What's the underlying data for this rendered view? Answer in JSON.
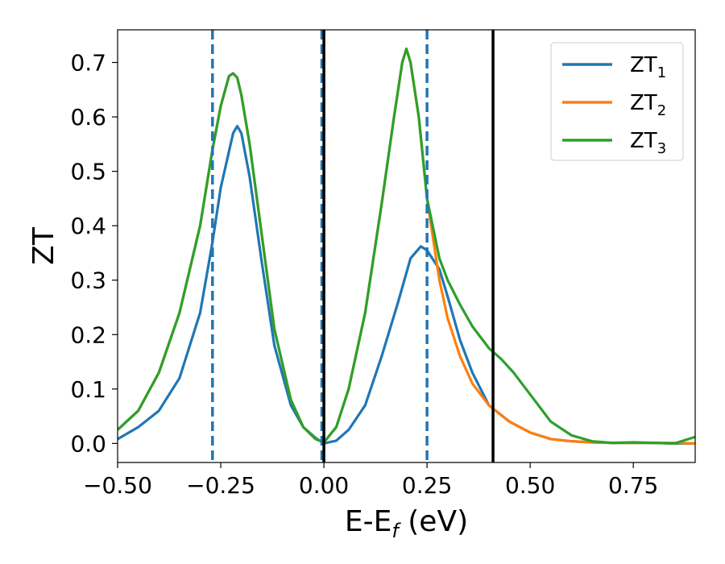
{
  "chart_data": {
    "type": "line",
    "xlabel": "E-E",
    "xlabel_sub": "f",
    "xlabel_unit": " (eV)",
    "ylabel": "ZT",
    "xlim": [
      -0.5,
      0.9
    ],
    "ylim": [
      -0.035,
      0.76
    ],
    "x_ticks": [
      -0.5,
      -0.25,
      0.0,
      0.25,
      0.5,
      0.75
    ],
    "x_tick_labels": [
      "−0.50",
      "−0.25",
      "0.00",
      "0.25",
      "0.50",
      "0.75"
    ],
    "y_ticks": [
      0.0,
      0.1,
      0.2,
      0.3,
      0.4,
      0.5,
      0.6,
      0.7
    ],
    "y_tick_labels": [
      "0.0",
      "0.1",
      "0.2",
      "0.3",
      "0.4",
      "0.5",
      "0.6",
      "0.7"
    ],
    "grid": false,
    "legend_position": "top-right",
    "series": [
      {
        "name": "ZT",
        "sub": "1",
        "color": "#1f77b4",
        "points": [
          [
            -0.5,
            0.008
          ],
          [
            -0.45,
            0.03
          ],
          [
            -0.4,
            0.06
          ],
          [
            -0.35,
            0.12
          ],
          [
            -0.3,
            0.24
          ],
          [
            -0.27,
            0.37
          ],
          [
            -0.25,
            0.47
          ],
          [
            -0.22,
            0.57
          ],
          [
            -0.21,
            0.583
          ],
          [
            -0.2,
            0.57
          ],
          [
            -0.18,
            0.49
          ],
          [
            -0.15,
            0.33
          ],
          [
            -0.12,
            0.18
          ],
          [
            -0.08,
            0.07
          ],
          [
            -0.05,
            0.03
          ],
          [
            -0.02,
            0.01
          ],
          [
            0.0,
            0.0
          ],
          [
            0.03,
            0.005
          ],
          [
            0.06,
            0.025
          ],
          [
            0.1,
            0.07
          ],
          [
            0.14,
            0.16
          ],
          [
            0.18,
            0.26
          ],
          [
            0.21,
            0.34
          ],
          [
            0.235,
            0.362
          ],
          [
            0.25,
            0.355
          ],
          [
            0.28,
            0.32
          ],
          [
            0.3,
            0.27
          ],
          [
            0.33,
            0.19
          ],
          [
            0.36,
            0.13
          ],
          [
            0.4,
            0.07
          ],
          [
            0.45,
            0.04
          ],
          [
            0.5,
            0.02
          ],
          [
            0.55,
            0.008
          ],
          [
            0.6,
            0.004
          ],
          [
            0.65,
            0.002
          ],
          [
            0.7,
            0.001
          ],
          [
            0.75,
            0.001
          ],
          [
            0.8,
            0.001
          ],
          [
            0.85,
            0.0
          ],
          [
            0.9,
            0.0
          ]
        ]
      },
      {
        "name": "ZT",
        "sub": "2",
        "color": "#ff7f0e",
        "points": [
          [
            -0.5,
            0.025
          ],
          [
            -0.45,
            0.06
          ],
          [
            -0.4,
            0.13
          ],
          [
            -0.35,
            0.24
          ],
          [
            -0.3,
            0.4
          ],
          [
            -0.27,
            0.54
          ],
          [
            -0.25,
            0.62
          ],
          [
            -0.23,
            0.675
          ],
          [
            -0.22,
            0.68
          ],
          [
            -0.21,
            0.672
          ],
          [
            -0.2,
            0.64
          ],
          [
            -0.18,
            0.55
          ],
          [
            -0.15,
            0.38
          ],
          [
            -0.12,
            0.21
          ],
          [
            -0.08,
            0.08
          ],
          [
            -0.05,
            0.03
          ],
          [
            -0.02,
            0.008
          ],
          [
            0.0,
            0.002
          ],
          [
            0.03,
            0.03
          ],
          [
            0.06,
            0.1
          ],
          [
            0.1,
            0.24
          ],
          [
            0.14,
            0.44
          ],
          [
            0.17,
            0.6
          ],
          [
            0.19,
            0.7
          ],
          [
            0.2,
            0.725
          ],
          [
            0.21,
            0.7
          ],
          [
            0.23,
            0.6
          ],
          [
            0.25,
            0.45
          ],
          [
            0.28,
            0.3
          ],
          [
            0.3,
            0.23
          ],
          [
            0.33,
            0.16
          ],
          [
            0.36,
            0.11
          ],
          [
            0.4,
            0.07
          ],
          [
            0.45,
            0.04
          ],
          [
            0.5,
            0.02
          ],
          [
            0.55,
            0.008
          ],
          [
            0.6,
            0.004
          ],
          [
            0.65,
            0.002
          ],
          [
            0.7,
            0.001
          ],
          [
            0.75,
            0.001
          ],
          [
            0.8,
            0.001
          ],
          [
            0.85,
            0.001
          ],
          [
            0.9,
            0.0
          ]
        ]
      },
      {
        "name": "ZT",
        "sub": "3",
        "color": "#2ca02c",
        "points": [
          [
            -0.5,
            0.025
          ],
          [
            -0.45,
            0.06
          ],
          [
            -0.4,
            0.13
          ],
          [
            -0.35,
            0.24
          ],
          [
            -0.3,
            0.4
          ],
          [
            -0.27,
            0.54
          ],
          [
            -0.25,
            0.62
          ],
          [
            -0.23,
            0.675
          ],
          [
            -0.22,
            0.68
          ],
          [
            -0.21,
            0.672
          ],
          [
            -0.2,
            0.64
          ],
          [
            -0.18,
            0.55
          ],
          [
            -0.15,
            0.38
          ],
          [
            -0.12,
            0.21
          ],
          [
            -0.08,
            0.08
          ],
          [
            -0.05,
            0.03
          ],
          [
            -0.02,
            0.008
          ],
          [
            0.0,
            0.002
          ],
          [
            0.03,
            0.03
          ],
          [
            0.06,
            0.1
          ],
          [
            0.1,
            0.24
          ],
          [
            0.14,
            0.44
          ],
          [
            0.17,
            0.6
          ],
          [
            0.19,
            0.7
          ],
          [
            0.2,
            0.725
          ],
          [
            0.21,
            0.7
          ],
          [
            0.23,
            0.6
          ],
          [
            0.25,
            0.45
          ],
          [
            0.28,
            0.34
          ],
          [
            0.3,
            0.3
          ],
          [
            0.33,
            0.255
          ],
          [
            0.36,
            0.215
          ],
          [
            0.4,
            0.175
          ],
          [
            0.43,
            0.155
          ],
          [
            0.46,
            0.13
          ],
          [
            0.49,
            0.1
          ],
          [
            0.52,
            0.07
          ],
          [
            0.55,
            0.04
          ],
          [
            0.6,
            0.015
          ],
          [
            0.65,
            0.004
          ],
          [
            0.7,
            0.001
          ],
          [
            0.75,
            0.002
          ],
          [
            0.8,
            0.001
          ],
          [
            0.85,
            0.0
          ],
          [
            0.9,
            0.012
          ]
        ]
      }
    ],
    "vlines": [
      {
        "x": -0.27,
        "style": "dashed",
        "color": "#1f77b4"
      },
      {
        "x": -0.005,
        "style": "dashed",
        "color": "#1f77b4"
      },
      {
        "x": 0.25,
        "style": "dashed",
        "color": "#1f77b4"
      },
      {
        "x": 0.0,
        "style": "solid",
        "color": "#000000"
      },
      {
        "x": 0.41,
        "style": "solid",
        "color": "#000000"
      }
    ]
  }
}
